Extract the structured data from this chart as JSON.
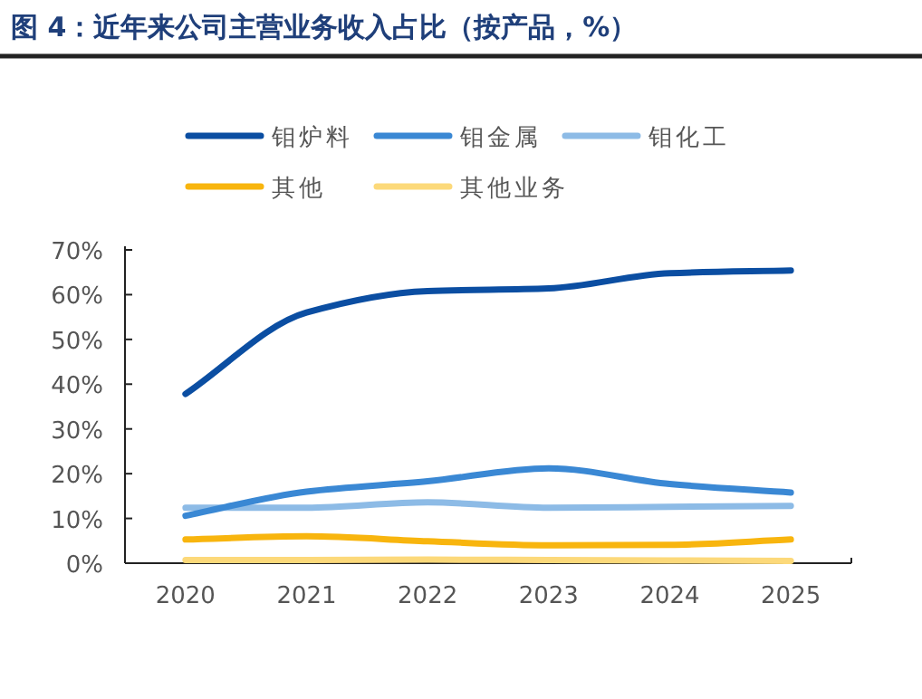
{
  "chart_data": {
    "type": "line",
    "title": "图 4：近年来公司主营业务收入占比（按产品，%）",
    "categories": [
      "2020",
      "2021",
      "2022",
      "2023",
      "2024",
      "2025"
    ],
    "series": [
      {
        "name": "钼炉料",
        "color": "#0b4ea2",
        "values": [
          37.8,
          56,
          60.8,
          61.4,
          64.8,
          65.4
        ]
      },
      {
        "name": "钼金属",
        "color": "#3a88d4",
        "values": [
          10.6,
          16,
          18.3,
          21.2,
          17.7,
          15.8
        ]
      },
      {
        "name": "钼化工",
        "color": "#8dbbe6",
        "values": [
          12.4,
          12.4,
          13.6,
          12.4,
          12.6,
          12.8
        ]
      },
      {
        "name": "其他",
        "color": "#f8b50e",
        "values": [
          5.3,
          6,
          4.9,
          4,
          4.1,
          5.3
        ]
      },
      {
        "name": "其他业务",
        "color": "#fcd97a",
        "values": [
          0.7,
          0.7,
          0.8,
          0.7,
          0.6,
          0.5
        ]
      }
    ],
    "ylim": [
      0,
      70
    ],
    "yticks": [
      {
        "value": 0,
        "label": "0%"
      },
      {
        "value": 10,
        "label": "10%"
      },
      {
        "value": 20,
        "label": "20%"
      },
      {
        "value": 30,
        "label": "30%"
      },
      {
        "value": 40,
        "label": "40%"
      },
      {
        "value": 50,
        "label": "50%"
      },
      {
        "value": 60,
        "label": "60%"
      },
      {
        "value": 70,
        "label": "70%"
      }
    ],
    "grid": false,
    "legend": "top",
    "marker": "none",
    "line_style": "solid"
  }
}
